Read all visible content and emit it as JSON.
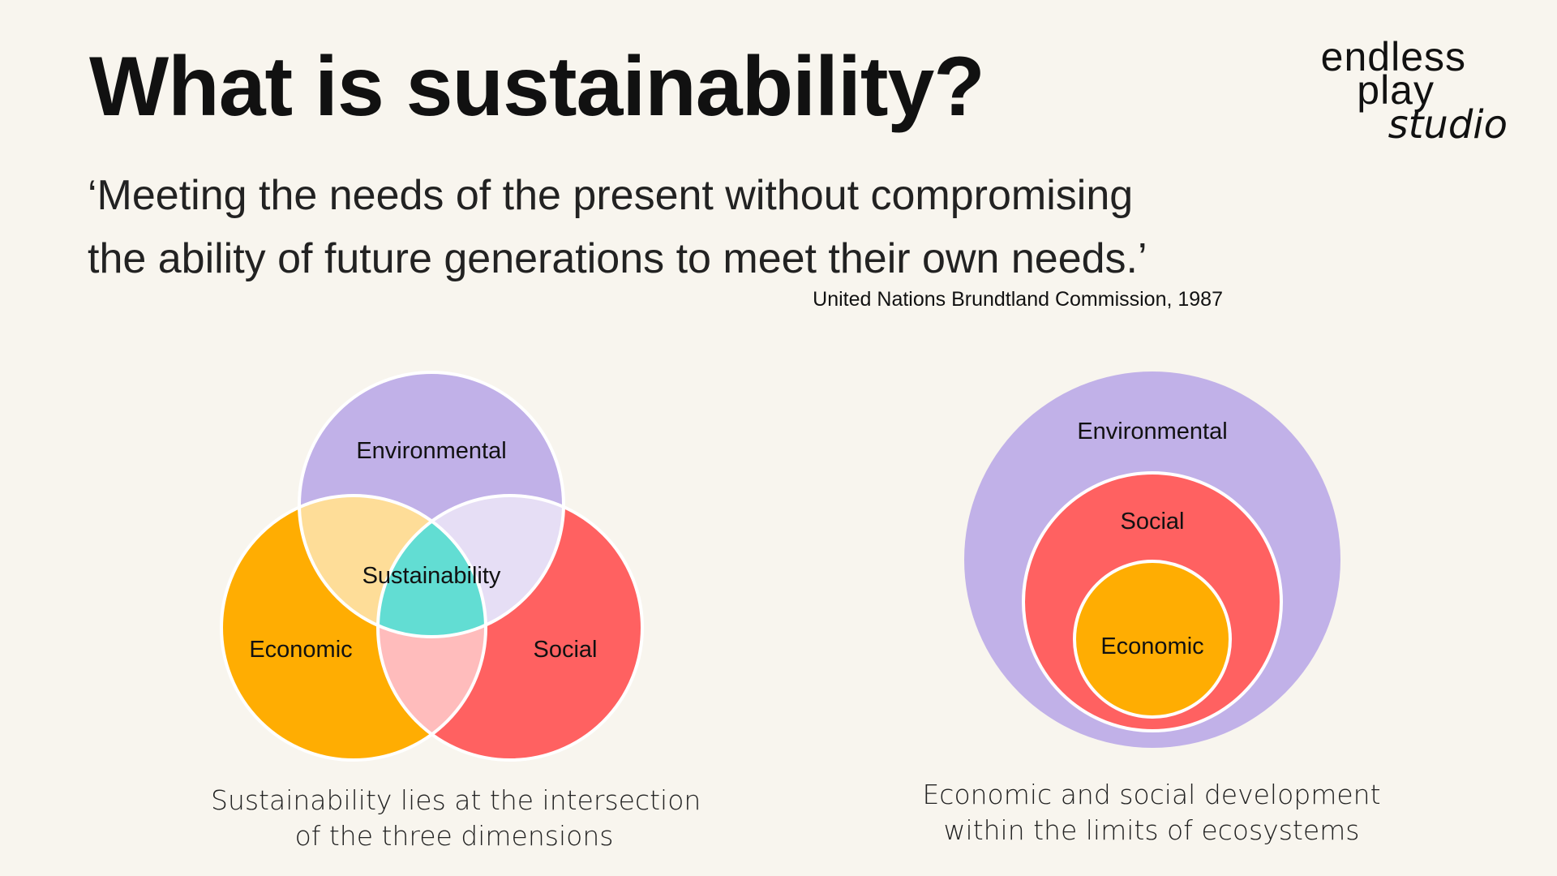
{
  "title": "What is sustainability?",
  "quote": {
    "line1": "‘Meeting the needs of the present without compromising",
    "line2": "the ability of future generations to meet their own needs.’"
  },
  "citation": "United Nations Brundtland Commission, 1987",
  "logo": {
    "line1": "endless",
    "line2": "play",
    "line3": "studio"
  },
  "venn": {
    "environmental": "Environmental",
    "economic": "Economic",
    "social": "Social",
    "center": "Sustainability",
    "caption_line1": "Sustainability lies at the intersection",
    "caption_line2": "of the three dimensions"
  },
  "nested": {
    "environmental": "Environmental",
    "social": "Social",
    "economic": "Economic",
    "caption_line1": "Economic and social development",
    "caption_line2": "within the limits of ecosystems"
  },
  "colors": {
    "background": "#f8f5ee",
    "environmental": "#c1b1e8",
    "economic": "#ffad02",
    "social": "#ff6161",
    "sustainability": "#62ddd3",
    "env_econ_overlap": "#fedd98",
    "env_social_overlap": "#e6def5",
    "econ_social_overlap": "#ffbcbc"
  }
}
